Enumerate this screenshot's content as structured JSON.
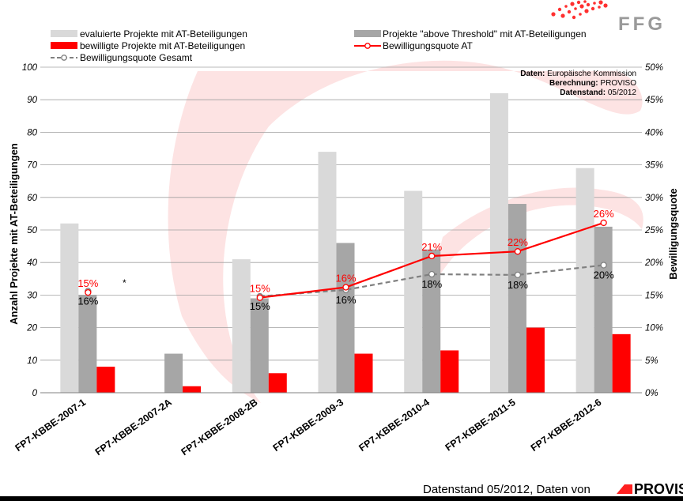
{
  "branding": {
    "top_logo": "FFG",
    "footer_text": "Datenstand 05/2012, Daten von",
    "footer_logo": "PROVISO"
  },
  "source_box": {
    "line1_label": "Daten:",
    "line1_value": "Europäische Kommission",
    "line2_label": "Berechnung:",
    "line2_value": "PROVISO",
    "line3_label": "Datenstand:",
    "line3_value": "05/2012"
  },
  "colors": {
    "evaluated": "#d9d9d9",
    "above": "#a6a6a6",
    "approved": "#ff0000",
    "rate_at": "#ff0000",
    "rate_total": "#808080",
    "swoosh": "#fde3e3"
  },
  "chart_data": {
    "type": "bar",
    "categories": [
      "FP7-KBBE-2007-1",
      "FP7-KBBE-2007-2A",
      "FP7-KBBE-2008-2B",
      "FP7-KBBE-2009-3",
      "FP7-KBBE-2010-4",
      "FP7-KBBE-2011-5",
      "FP7-KBBE-2012-6"
    ],
    "series": [
      {
        "name": "evaluierte Projekte mit AT-Beteiligungen",
        "kind": "bar",
        "values": [
          52,
          null,
          41,
          74,
          62,
          92,
          69
        ]
      },
      {
        "name": "Projekte \"above Threshold\" mit AT-Beteiligungen",
        "kind": "bar",
        "values": [
          30,
          12,
          29,
          46,
          44,
          58,
          51
        ]
      },
      {
        "name": "bewilligte Projekte mit AT-Beteiligungen",
        "kind": "bar",
        "values": [
          8,
          2,
          6,
          12,
          13,
          20,
          18
        ]
      },
      {
        "name": "Bewilligungsquote AT",
        "kind": "line",
        "axis": "right",
        "values": [
          15.4,
          null,
          14.6,
          16.2,
          21,
          21.7,
          26.1
        ],
        "labels": [
          "15%",
          null,
          "15%",
          "16%",
          "21%",
          "22%",
          "26%"
        ]
      },
      {
        "name": "Bewilligungsquote Gesamt",
        "kind": "line",
        "axis": "right",
        "dashed": true,
        "values": [
          15.6,
          null,
          14.8,
          15.8,
          18.2,
          18.1,
          19.6
        ],
        "labels": [
          "16%",
          null,
          "15%",
          "16%",
          "18%",
          "18%",
          "20%"
        ]
      }
    ],
    "ylabel": "Anzahl Projekte mit AT-Beteiligungen",
    "y2label": "Bewilligungsquote",
    "ylim": [
      0,
      100
    ],
    "y2lim": [
      0,
      50
    ],
    "yticks": [
      "0",
      "10",
      "20",
      "30",
      "40",
      "50",
      "60",
      "70",
      "80",
      "90",
      "100"
    ],
    "y2ticks": [
      "0%",
      "5%",
      "10%",
      "15%",
      "20%",
      "25%",
      "30%",
      "35%",
      "40%",
      "45%",
      "50%"
    ],
    "annotation": "*",
    "grid": true,
    "legend_position": "top"
  }
}
